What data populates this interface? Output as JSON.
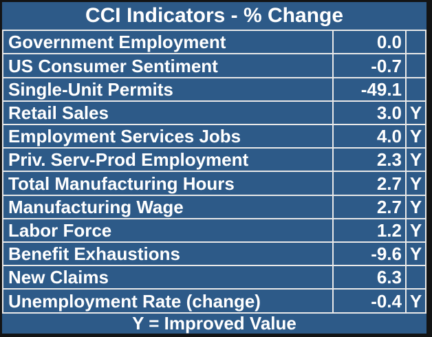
{
  "colors": {
    "table_background": "#2d5a88",
    "grid_line": "#e9e9e9",
    "text": "#ffffff",
    "outer_frame": "#131415"
  },
  "chart_data": {
    "type": "table",
    "title": "CCI Indicators - % Change",
    "footnote": "Y = Improved Value",
    "rows": [
      {
        "label": "Government Employment",
        "value": "0.0",
        "improved": ""
      },
      {
        "label": "US Consumer Sentiment",
        "value": "-0.7",
        "improved": ""
      },
      {
        "label": "Single-Unit Permits",
        "value": "-49.1",
        "improved": ""
      },
      {
        "label": "Retail Sales",
        "value": "3.0",
        "improved": "Y"
      },
      {
        "label": "Employment Services Jobs",
        "value": "4.0",
        "improved": "Y"
      },
      {
        "label": "Priv. Serv-Prod Employment",
        "value": "2.3",
        "improved": "Y"
      },
      {
        "label": "Total Manufacturing Hours",
        "value": "2.7",
        "improved": "Y"
      },
      {
        "label": "Manufacturing Wage",
        "value": "2.7",
        "improved": "Y"
      },
      {
        "label": "Labor Force",
        "value": "1.2",
        "improved": "Y"
      },
      {
        "label": "Benefit Exhaustions",
        "value": "-9.6",
        "improved": "Y"
      },
      {
        "label": "New Claims",
        "value": "6.3",
        "improved": ""
      },
      {
        "label": "Unemployment Rate (change)",
        "value": "-0.4",
        "improved": "Y"
      }
    ],
    "numeric_values": [
      0.0,
      -0.7,
      -49.1,
      3.0,
      4.0,
      2.3,
      2.7,
      2.7,
      1.2,
      -9.6,
      6.3,
      -0.4
    ]
  }
}
